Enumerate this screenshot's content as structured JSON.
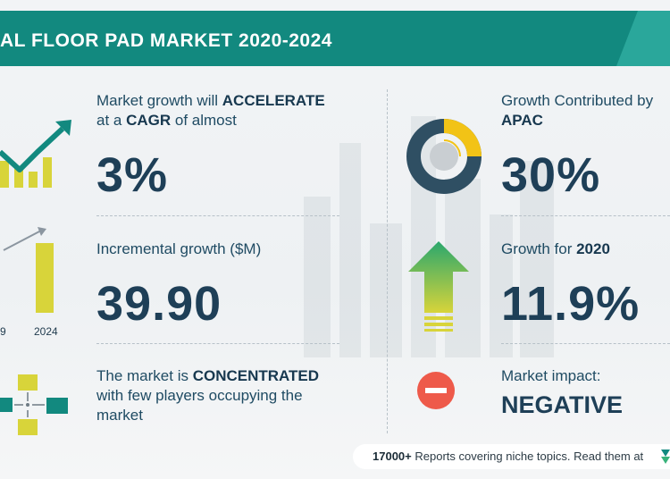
{
  "header": {
    "title": "AL FLOOR PAD MARKET 2020-2024"
  },
  "left": {
    "cagr": {
      "line1_prefix": "Market growth will ",
      "line1_bold": "ACCELERATE",
      "line2_prefix": "at a ",
      "line2_bold": "CAGR",
      "line2_suffix": " of almost",
      "value": "3%"
    },
    "incremental": {
      "label": "Incremental growth ($M)",
      "value": "39.90"
    },
    "concentration": {
      "line1_prefix": "The market is ",
      "line1_bold": "CONCENTRATED",
      "line2": "with few players occupying the",
      "line3": "market"
    },
    "bar_labels": {
      "start": "9",
      "end": "2024"
    }
  },
  "right": {
    "apac": {
      "label": "Growth Contributed by",
      "region": "APAC",
      "value": "30%"
    },
    "growth2020": {
      "label_prefix": "Growth for ",
      "label_bold": "2020",
      "value": "11.9%"
    },
    "impact": {
      "label": "Market impact:",
      "value": "NEGATIVE"
    }
  },
  "footer": {
    "bold": "17000+",
    "text": " Reports covering niche topics. Read them at"
  },
  "colors": {
    "teal": "#12897f",
    "navy": "#1e3f57",
    "yellow": "#d8d43a",
    "donut_yellow": "#f2c316",
    "red": "#ee5a4a",
    "green": "#38b27a"
  },
  "icons": [
    "growth-chart-icon",
    "bar-compare-icon",
    "players-network-icon",
    "donut-icon",
    "up-arrow-icon",
    "minus-icon",
    "brand-logo-icon"
  ]
}
